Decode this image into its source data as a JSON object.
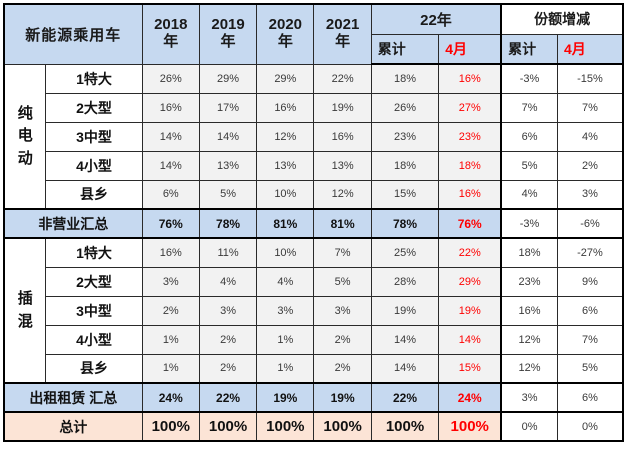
{
  "colors": {
    "header_blue": "#c6d9f0",
    "data_gray": "#f2f2f2",
    "total_orange": "#fce4d6",
    "accent_red": "#ff0000",
    "border_black": "#000000"
  },
  "chart_data": {
    "type": "table",
    "corner_label": "新能源乘用车",
    "columns": [
      "2018年",
      "2019年",
      "2020年",
      "2021年",
      "22年 累计",
      "22年 4月",
      "份额增减 累计",
      "份额增减 4月"
    ],
    "header": {
      "years_display": [
        "2018\n年",
        "2019\n年",
        "2020\n年",
        "2021\n年"
      ],
      "group22": "22年",
      "share": "份额增减",
      "cum": "累计",
      "apr": "4月"
    },
    "body": [
      {
        "kind": "group",
        "group": "纯电动",
        "rows": [
          {
            "label": "1特大",
            "values": [
              "26%",
              "29%",
              "29%",
              "22%",
              "18%",
              "16%",
              "-3%",
              "-15%"
            ]
          },
          {
            "label": "2大型",
            "values": [
              "16%",
              "17%",
              "16%",
              "19%",
              "26%",
              "27%",
              "7%",
              "7%"
            ]
          },
          {
            "label": "3中型",
            "values": [
              "14%",
              "14%",
              "12%",
              "16%",
              "23%",
              "23%",
              "6%",
              "4%"
            ]
          },
          {
            "label": "4小型",
            "values": [
              "14%",
              "13%",
              "13%",
              "13%",
              "18%",
              "18%",
              "5%",
              "2%"
            ]
          },
          {
            "label": "县乡",
            "values": [
              "6%",
              "5%",
              "10%",
              "12%",
              "15%",
              "16%",
              "4%",
              "3%"
            ]
          }
        ]
      },
      {
        "kind": "summary",
        "style": "blue",
        "label": "非营业汇总",
        "values": [
          "76%",
          "78%",
          "81%",
          "81%",
          "78%",
          "76%",
          "-3%",
          "-6%"
        ]
      },
      {
        "kind": "group",
        "group": "插混",
        "rows": [
          {
            "label": "1特大",
            "values": [
              "16%",
              "11%",
              "10%",
              "7%",
              "25%",
              "22%",
              "18%",
              "-27%"
            ]
          },
          {
            "label": "2大型",
            "values": [
              "3%",
              "4%",
              "4%",
              "5%",
              "28%",
              "29%",
              "23%",
              "9%"
            ]
          },
          {
            "label": "3中型",
            "values": [
              "2%",
              "3%",
              "3%",
              "3%",
              "19%",
              "19%",
              "16%",
              "6%"
            ]
          },
          {
            "label": "4小型",
            "values": [
              "1%",
              "2%",
              "1%",
              "2%",
              "14%",
              "14%",
              "12%",
              "7%"
            ]
          },
          {
            "label": "县乡",
            "values": [
              "1%",
              "2%",
              "1%",
              "2%",
              "14%",
              "15%",
              "12%",
              "5%"
            ]
          }
        ]
      },
      {
        "kind": "summary",
        "style": "blue",
        "label": "出租租赁 汇总",
        "values": [
          "24%",
          "22%",
          "19%",
          "19%",
          "22%",
          "24%",
          "3%",
          "6%"
        ]
      },
      {
        "kind": "summary",
        "style": "orange",
        "label": "总计",
        "values": [
          "100%",
          "100%",
          "100%",
          "100%",
          "100%",
          "100%",
          "0%",
          "0%"
        ]
      }
    ]
  }
}
